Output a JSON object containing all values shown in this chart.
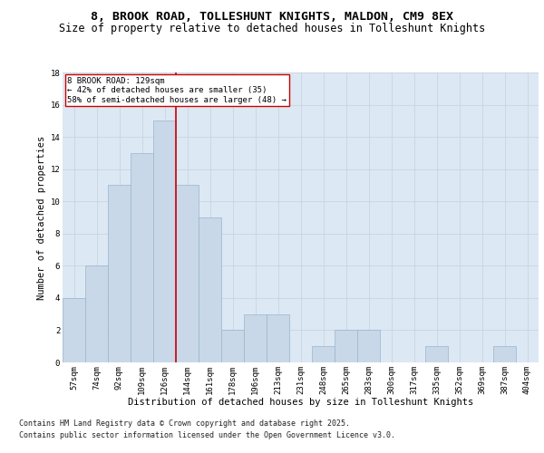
{
  "title_line1": "8, BROOK ROAD, TOLLESHUNT KNIGHTS, MALDON, CM9 8EX",
  "title_line2": "Size of property relative to detached houses in Tolleshunt Knights",
  "xlabel": "Distribution of detached houses by size in Tolleshunt Knights",
  "ylabel": "Number of detached properties",
  "categories": [
    "57sqm",
    "74sqm",
    "92sqm",
    "109sqm",
    "126sqm",
    "144sqm",
    "161sqm",
    "178sqm",
    "196sqm",
    "213sqm",
    "231sqm",
    "248sqm",
    "265sqm",
    "283sqm",
    "300sqm",
    "317sqm",
    "335sqm",
    "352sqm",
    "369sqm",
    "387sqm",
    "404sqm"
  ],
  "values": [
    4,
    6,
    11,
    13,
    15,
    11,
    9,
    2,
    3,
    3,
    0,
    1,
    2,
    2,
    0,
    0,
    1,
    0,
    0,
    1,
    0
  ],
  "bar_color": "#c8d8e8",
  "bar_edge_color": "#9ab4cc",
  "bar_width": 1.0,
  "property_line_x": 4.5,
  "annotation_text_line1": "8 BROOK ROAD: 129sqm",
  "annotation_text_line2": "← 42% of detached houses are smaller (35)",
  "annotation_text_line3": "58% of semi-detached houses are larger (48) →",
  "annotation_box_color": "#ffffff",
  "annotation_box_edge": "#cc0000",
  "vline_color": "#cc0000",
  "ylim": [
    0,
    18
  ],
  "yticks": [
    0,
    2,
    4,
    6,
    8,
    10,
    12,
    14,
    16,
    18
  ],
  "grid_color": "#c8d4e0",
  "bg_color": "#dce8f4",
  "footnote_line1": "Contains HM Land Registry data © Crown copyright and database right 2025.",
  "footnote_line2": "Contains public sector information licensed under the Open Government Licence v3.0.",
  "title_fontsize": 9.5,
  "subtitle_fontsize": 8.5,
  "axis_label_fontsize": 7.5,
  "tick_fontsize": 6.5,
  "annot_fontsize": 6.5,
  "footnote_fontsize": 6.0
}
